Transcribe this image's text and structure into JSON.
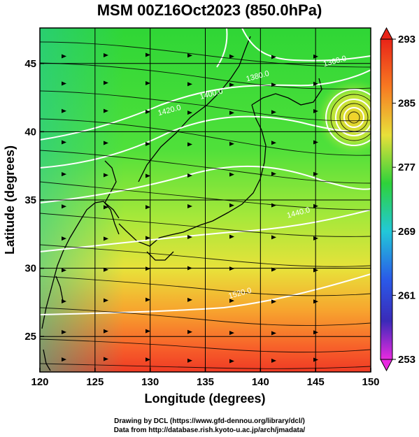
{
  "title": "MSM 00Z16Oct2023 (850.0hPa)",
  "x_axis": {
    "label": "Longitude (degrees)",
    "ticks": [
      "120",
      "125",
      "130",
      "135",
      "140",
      "145",
      "150"
    ]
  },
  "y_axis": {
    "label": "Latitude  (degrees)",
    "ticks": [
      "25",
      "30",
      "35",
      "40",
      "45"
    ]
  },
  "colorbar": {
    "ticks": [
      "293",
      "285",
      "277",
      "269",
      "261",
      "253"
    ]
  },
  "contour_labels": [
    "1360.0",
    "1380.0",
    "1400.0",
    "1420.0",
    "1440.0",
    "1520.0"
  ],
  "credits": {
    "line1": "Drawing by DCL (https://www.gfd-dennou.org/library/dcl/)",
    "line2": "Data from http://database.rish.kyoto-u.ac.jp/arch/jmadata/"
  },
  "chart_data": {
    "type": "heatmap",
    "title": "MSM 00Z16Oct2023 (850.0hPa)",
    "xlabel": "Longitude (degrees)",
    "ylabel": "Latitude  (degrees)",
    "xlim": [
      120,
      150
    ],
    "ylim": [
      22.4,
      47.6
    ],
    "x_ticks": [
      120,
      125,
      130,
      135,
      140,
      145,
      150
    ],
    "y_ticks": [
      25,
      30,
      35,
      40,
      45
    ],
    "colorbar_range": [
      253,
      293
    ],
    "colorbar_ticks": [
      293,
      285,
      277,
      269,
      261,
      253
    ],
    "grid": true,
    "temperature_gradient_K": [
      {
        "lat": 47,
        "value": 278
      },
      {
        "lat": 42,
        "value": 279
      },
      {
        "lat": 36,
        "value": 281
      },
      {
        "lat": 31,
        "value": 284
      },
      {
        "lat": 27,
        "value": 287
      },
      {
        "lat": 24,
        "value": 289
      }
    ],
    "contour_lines": [
      {
        "label": "1360.0",
        "lon": 146.8,
        "lat": 45.0
      },
      {
        "label": "1380.0",
        "lon": 139.8,
        "lat": 43.9
      },
      {
        "label": "1400.0",
        "lon": 135.6,
        "lat": 42.6
      },
      {
        "label": "1420.0",
        "lon": 131.8,
        "lat": 41.4
      },
      {
        "label": "1440.0",
        "lon": 143.5,
        "lat": 33.9
      },
      {
        "label": "1520.0",
        "lon": 138.2,
        "lat": 28.0
      }
    ],
    "cyclone_center": {
      "lon": 148.5,
      "lat": 41.8
    }
  }
}
